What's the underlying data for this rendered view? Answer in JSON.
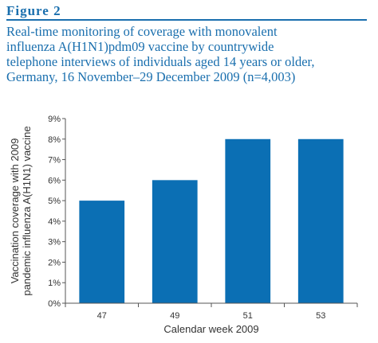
{
  "figure": {
    "label": "Figure 2",
    "title_lines": [
      "Real-time monitoring of coverage with monovalent",
      "influenza A(H1N1)pdm09 vaccine by countrywide",
      "telephone interviews of individuals aged 14 years or older,",
      "Germany, 16 November–29 December 2009 (n=4,003)"
    ]
  },
  "chart_data": {
    "type": "bar",
    "categories": [
      "47",
      "49",
      "51",
      "53"
    ],
    "values": [
      5,
      6,
      8,
      8
    ],
    "xlabel": "Calendar week 2009",
    "ylabel_lines": [
      "Vaccination coverage with 2009",
      "pandemic influenza A(H1N1) vaccine"
    ],
    "ylim": [
      0,
      9
    ],
    "yticks": [
      0,
      1,
      2,
      3,
      4,
      5,
      6,
      7,
      8,
      9
    ],
    "ytick_labels": [
      "0%",
      "1%",
      "2%",
      "3%",
      "4%",
      "5%",
      "6%",
      "7%",
      "8%",
      "9%"
    ],
    "bar_color": "#0b6fb4",
    "grid": false
  }
}
